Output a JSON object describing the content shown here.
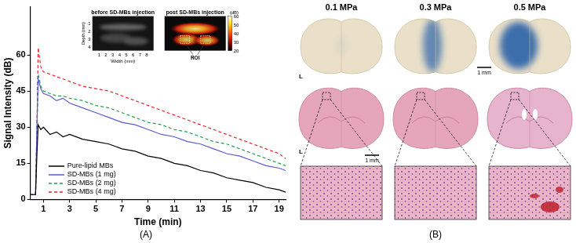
{
  "panel_a_label": "(A)",
  "chart_data": {
    "type": "line",
    "x_label": "Time (min)",
    "y_label": "Signal Intensity (dB)",
    "x": [
      0,
      0.4,
      0.5,
      0.6,
      0.8,
      1,
      1.5,
      2,
      2.5,
      3,
      4,
      5,
      6,
      7,
      8,
      9,
      10,
      11,
      12,
      13,
      14,
      15,
      16,
      17,
      18,
      19,
      19.5
    ],
    "series": [
      {
        "name": "Pure-lipid MBs",
        "color": "#000000",
        "line_style": "solid",
        "values": [
          2,
          2,
          18,
          31,
          29,
          30,
          27,
          28,
          26,
          27,
          25,
          24,
          23,
          21,
          20,
          18,
          17,
          15,
          14,
          12,
          11,
          9,
          8,
          7,
          5,
          4,
          3
        ]
      },
      {
        "name": "SD-MBs (1 mg)",
        "color": "#5a5ad2",
        "line_style": "solid",
        "values": [
          2,
          2,
          30,
          50,
          46,
          44,
          43,
          41,
          42,
          40,
          38,
          36,
          34,
          32,
          31,
          29,
          27,
          26,
          24,
          23,
          21,
          19,
          18,
          16,
          14,
          13,
          12
        ]
      },
      {
        "name": "SD-MBs (2 mg)",
        "color": "#1fa050",
        "line_style": "dashed",
        "values": [
          2,
          2,
          25,
          52,
          47,
          45,
          44,
          43,
          43,
          42,
          41,
          39,
          38,
          36,
          34,
          32,
          31,
          29,
          28,
          26,
          24,
          23,
          21,
          19,
          17,
          15,
          14
        ]
      },
      {
        "name": "SD-MBs (4 mg)",
        "color": "#e8262a",
        "line_style": "dashed",
        "values": [
          2,
          2,
          28,
          63,
          55,
          53,
          52,
          51,
          50,
          49,
          47,
          46,
          45,
          43,
          41,
          39,
          37,
          35,
          33,
          31,
          29,
          27,
          25,
          23,
          21,
          19,
          17
        ]
      }
    ],
    "xlim": [
      0,
      19.5
    ],
    "xticks": [
      1,
      3,
      5,
      7,
      9,
      11,
      13,
      15,
      17,
      19
    ],
    "ylim": [
      0,
      80
    ],
    "yticks": [
      0,
      15,
      30,
      45,
      60
    ],
    "legend": "lower left",
    "grid": false
  },
  "insets": [
    {
      "title": "before SD-MBs injection",
      "x_label": "Width (mm)",
      "y_label": "Depth (mm)",
      "xlim": [
        0,
        9
      ],
      "xticks": [
        1,
        2,
        3,
        4,
        5,
        6,
        7,
        8
      ],
      "ylim": [
        0,
        4.5
      ],
      "yticks": [
        1,
        2,
        3,
        4
      ]
    },
    {
      "title": "post SD-MBs injection",
      "colorbar_label": "(dB)",
      "colorbar_range": [
        20,
        60
      ],
      "colorbar_ticks": [
        20,
        30,
        40,
        50,
        60
      ],
      "annotation": "ROI"
    }
  ],
  "panel_b": {
    "label": "(B)",
    "columns": [
      "0.1 MPa",
      "0.3 MPa",
      "0.5 MPa"
    ],
    "rows": [
      {
        "side_label": "L",
        "scale_bar": "1 mm"
      },
      {
        "side_label": "L",
        "scale_bar": "1 mm"
      }
    ]
  }
}
